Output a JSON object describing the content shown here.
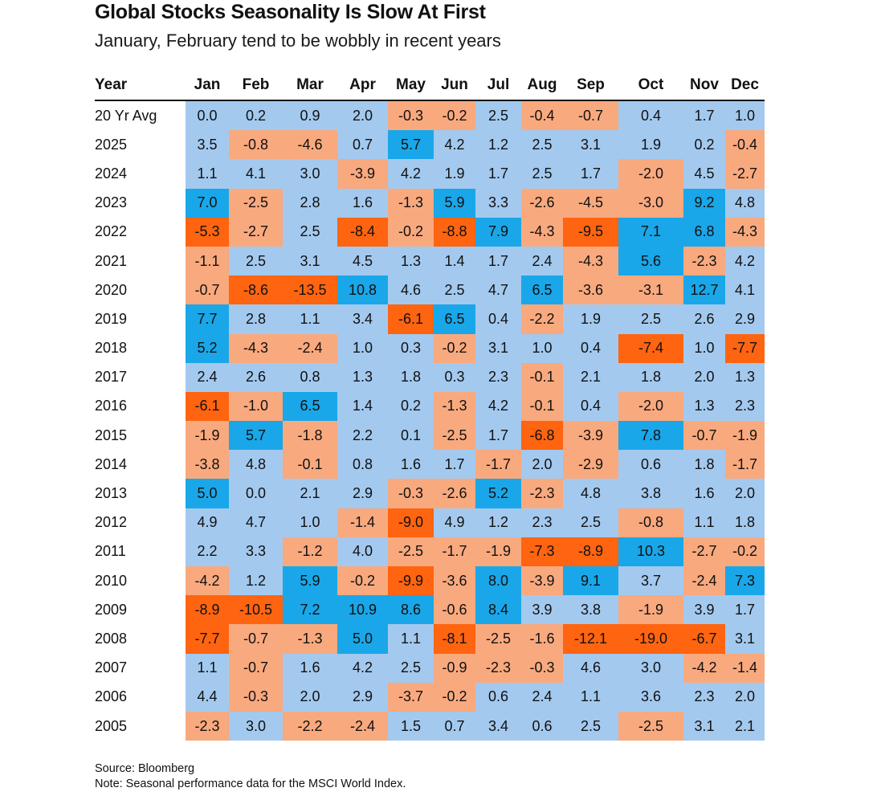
{
  "title": "Global Stocks Seasonality Is Slow At First",
  "subtitle": "January, February tend to be wobbly in recent years",
  "footer": {
    "source": "Source: Bloomberg",
    "note": "Note: Seasonal performance data for the MSCI World Index."
  },
  "colors": {
    "pos_light": "#a3c9ef",
    "pos_strong": "#19a7e9",
    "neg_light": "#f9a97e",
    "neg_strong": "#ff6410"
  },
  "chart_data": {
    "type": "table",
    "title": "Global Stocks Seasonality Is Slow At First",
    "subtitle": "January, February tend to be wobbly in recent years",
    "columns": [
      "Year",
      "Jan",
      "Feb",
      "Mar",
      "Apr",
      "May",
      "Jun",
      "Jul",
      "Aug",
      "Sep",
      "Oct",
      "Nov",
      "Dec"
    ],
    "rows": [
      {
        "label": "20 Yr Avg",
        "values": [
          "0.0",
          "0.2",
          "0.9",
          "2.0",
          "-0.3",
          "-0.2",
          "2.5",
          "-0.4",
          "-0.7",
          "0.4",
          "1.7",
          "1.0"
        ]
      },
      {
        "label": "2025",
        "values": [
          "3.5",
          "-0.8",
          "-4.6",
          "0.7",
          "5.7",
          "4.2",
          "1.2",
          "2.5",
          "3.1",
          "1.9",
          "0.2",
          "-0.4"
        ]
      },
      {
        "label": "2024",
        "values": [
          "1.1",
          "4.1",
          "3.0",
          "-3.9",
          "4.2",
          "1.9",
          "1.7",
          "2.5",
          "1.7",
          "-2.0",
          "4.5",
          "-2.7"
        ]
      },
      {
        "label": "2023",
        "values": [
          "7.0",
          "-2.5",
          "2.8",
          "1.6",
          "-1.3",
          "5.9",
          "3.3",
          "-2.6",
          "-4.5",
          "-3.0",
          "9.2",
          "4.8"
        ]
      },
      {
        "label": "2022",
        "values": [
          "-5.3",
          "-2.7",
          "2.5",
          "-8.4",
          "-0.2",
          "-8.8",
          "7.9",
          "-4.3",
          "-9.5",
          "7.1",
          "6.8",
          "-4.3"
        ]
      },
      {
        "label": "2021",
        "values": [
          "-1.1",
          "2.5",
          "3.1",
          "4.5",
          "1.3",
          "1.4",
          "1.7",
          "2.4",
          "-4.3",
          "5.6",
          "-2.3",
          "4.2"
        ]
      },
      {
        "label": "2020",
        "values": [
          "-0.7",
          "-8.6",
          "-13.5",
          "10.8",
          "4.6",
          "2.5",
          "4.7",
          "6.5",
          "-3.6",
          "-3.1",
          "12.7",
          "4.1"
        ]
      },
      {
        "label": "2019",
        "values": [
          "7.7",
          "2.8",
          "1.1",
          "3.4",
          "-6.1",
          "6.5",
          "0.4",
          "-2.2",
          "1.9",
          "2.5",
          "2.6",
          "2.9"
        ]
      },
      {
        "label": "2018",
        "values": [
          "5.2",
          "-4.3",
          "-2.4",
          "1.0",
          "0.3",
          "-0.2",
          "3.1",
          "1.0",
          "0.4",
          "-7.4",
          "1.0",
          "-7.7"
        ]
      },
      {
        "label": "2017",
        "values": [
          "2.4",
          "2.6",
          "0.8",
          "1.3",
          "1.8",
          "0.3",
          "2.3",
          "-0.1",
          "2.1",
          "1.8",
          "2.0",
          "1.3"
        ]
      },
      {
        "label": "2016",
        "values": [
          "-6.1",
          "-1.0",
          "6.5",
          "1.4",
          "0.2",
          "-1.3",
          "4.2",
          "-0.1",
          "0.4",
          "-2.0",
          "1.3",
          "2.3"
        ]
      },
      {
        "label": "2015",
        "values": [
          "-1.9",
          "5.7",
          "-1.8",
          "2.2",
          "0.1",
          "-2.5",
          "1.7",
          "-6.8",
          "-3.9",
          "7.8",
          "-0.7",
          "-1.9"
        ]
      },
      {
        "label": "2014",
        "values": [
          "-3.8",
          "4.8",
          "-0.1",
          "0.8",
          "1.6",
          "1.7",
          "-1.7",
          "2.0",
          "-2.9",
          "0.6",
          "1.8",
          "-1.7"
        ]
      },
      {
        "label": "2013",
        "values": [
          "5.0",
          "0.0",
          "2.1",
          "2.9",
          "-0.3",
          "-2.6",
          "5.2",
          "-2.3",
          "4.8",
          "3.8",
          "1.6",
          "2.0"
        ]
      },
      {
        "label": "2012",
        "values": [
          "4.9",
          "4.7",
          "1.0",
          "-1.4",
          "-9.0",
          "4.9",
          "1.2",
          "2.3",
          "2.5",
          "-0.8",
          "1.1",
          "1.8"
        ]
      },
      {
        "label": "2011",
        "values": [
          "2.2",
          "3.3",
          "-1.2",
          "4.0",
          "-2.5",
          "-1.7",
          "-1.9",
          "-7.3",
          "-8.9",
          "10.3",
          "-2.7",
          "-0.2"
        ]
      },
      {
        "label": "2010",
        "values": [
          "-4.2",
          "1.2",
          "5.9",
          "-0.2",
          "-9.9",
          "-3.6",
          "8.0",
          "-3.9",
          "9.1",
          "3.7",
          "-2.4",
          "7.3"
        ]
      },
      {
        "label": "2009",
        "values": [
          "-8.9",
          "-10.5",
          "7.2",
          "10.9",
          "8.6",
          "-0.6",
          "8.4",
          "3.9",
          "3.8",
          "-1.9",
          "3.9",
          "1.7"
        ]
      },
      {
        "label": "2008",
        "values": [
          "-7.7",
          "-0.7",
          "-1.3",
          "5.0",
          "1.1",
          "-8.1",
          "-2.5",
          "-1.6",
          "-12.1",
          "-19.0",
          "-6.7",
          "3.1"
        ]
      },
      {
        "label": "2007",
        "values": [
          "1.1",
          "-0.7",
          "1.6",
          "4.2",
          "2.5",
          "-0.9",
          "-2.3",
          "-0.3",
          "4.6",
          "3.0",
          "-4.2",
          "-1.4"
        ]
      },
      {
        "label": "2006",
        "values": [
          "4.4",
          "-0.3",
          "2.0",
          "2.9",
          "-3.7",
          "-0.2",
          "0.6",
          "2.4",
          "1.1",
          "3.6",
          "2.3",
          "2.0"
        ]
      },
      {
        "label": "2005",
        "values": [
          "-2.3",
          "3.0",
          "-2.2",
          "-2.4",
          "1.5",
          "0.7",
          "3.4",
          "0.6",
          "2.5",
          "-2.5",
          "3.1",
          "2.1"
        ]
      }
    ]
  }
}
